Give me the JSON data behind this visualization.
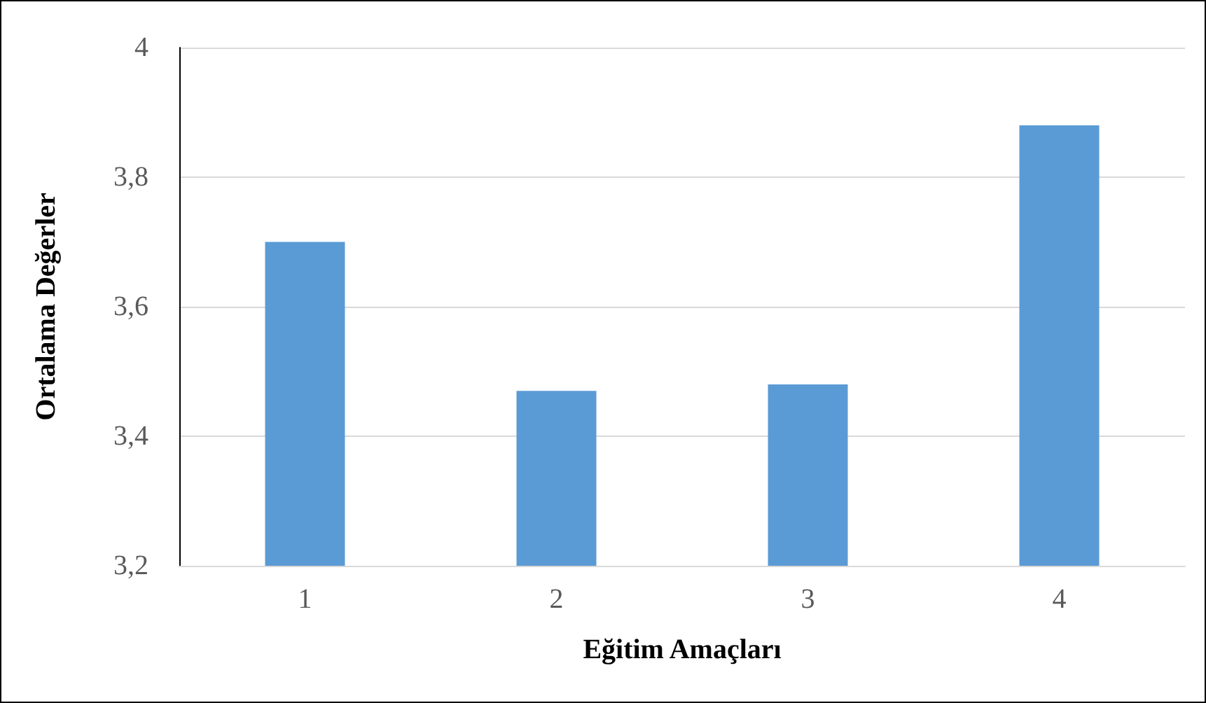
{
  "chart_data": {
    "type": "bar",
    "xlabel": "Eğitim Amaçları",
    "ylabel": "Ortalama Değerler",
    "categories": [
      "1",
      "2",
      "3",
      "4"
    ],
    "values": [
      3.7,
      3.47,
      3.48,
      3.88
    ],
    "color": "#5b9bd5",
    "ylim": [
      3.2,
      4
    ],
    "yticks": [
      {
        "value": 3.2,
        "label": "3,2"
      },
      {
        "value": 3.4,
        "label": "3,4"
      },
      {
        "value": 3.6,
        "label": "3,6"
      },
      {
        "value": 3.8,
        "label": "3,8"
      },
      4
    ],
    "grid": "y"
  }
}
